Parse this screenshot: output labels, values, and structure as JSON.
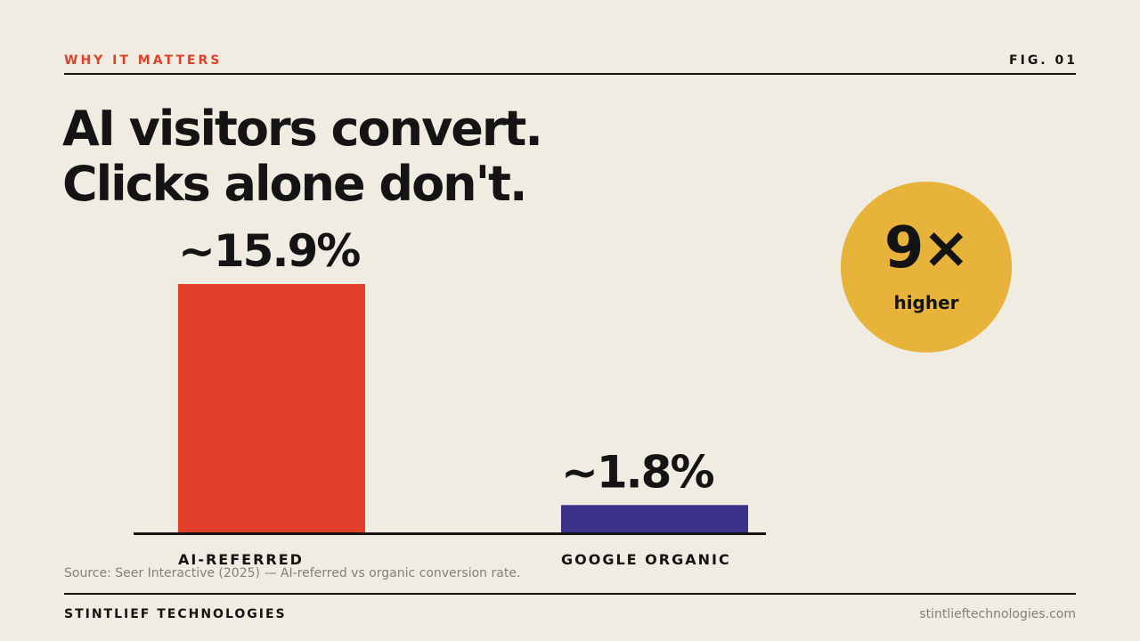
{
  "header": {
    "eyebrow": "WHY IT MATTERS",
    "figure": "FIG. 01"
  },
  "headline": {
    "line1": "AI visitors convert.",
    "line2": "Clicks alone don't."
  },
  "badge": {
    "value": "9×",
    "label": "higher",
    "color": "#e8b33a"
  },
  "chart_data": {
    "type": "bar",
    "categories": [
      "AI-REFERRED",
      "GOOGLE ORGANIC"
    ],
    "values": [
      15.9,
      1.8
    ],
    "data_labels": [
      "~15.9%",
      "~1.8%"
    ],
    "colors": [
      "#e0402a",
      "#3a3288"
    ],
    "ylim": [
      0,
      15.9
    ],
    "grid": false
  },
  "source": "Source: Seer Interactive (2025) — AI-referred vs organic conversion rate.",
  "footer": {
    "brand": "STINTLIEF TECHNOLOGIES",
    "url": "stintlieftechnologies.com"
  }
}
